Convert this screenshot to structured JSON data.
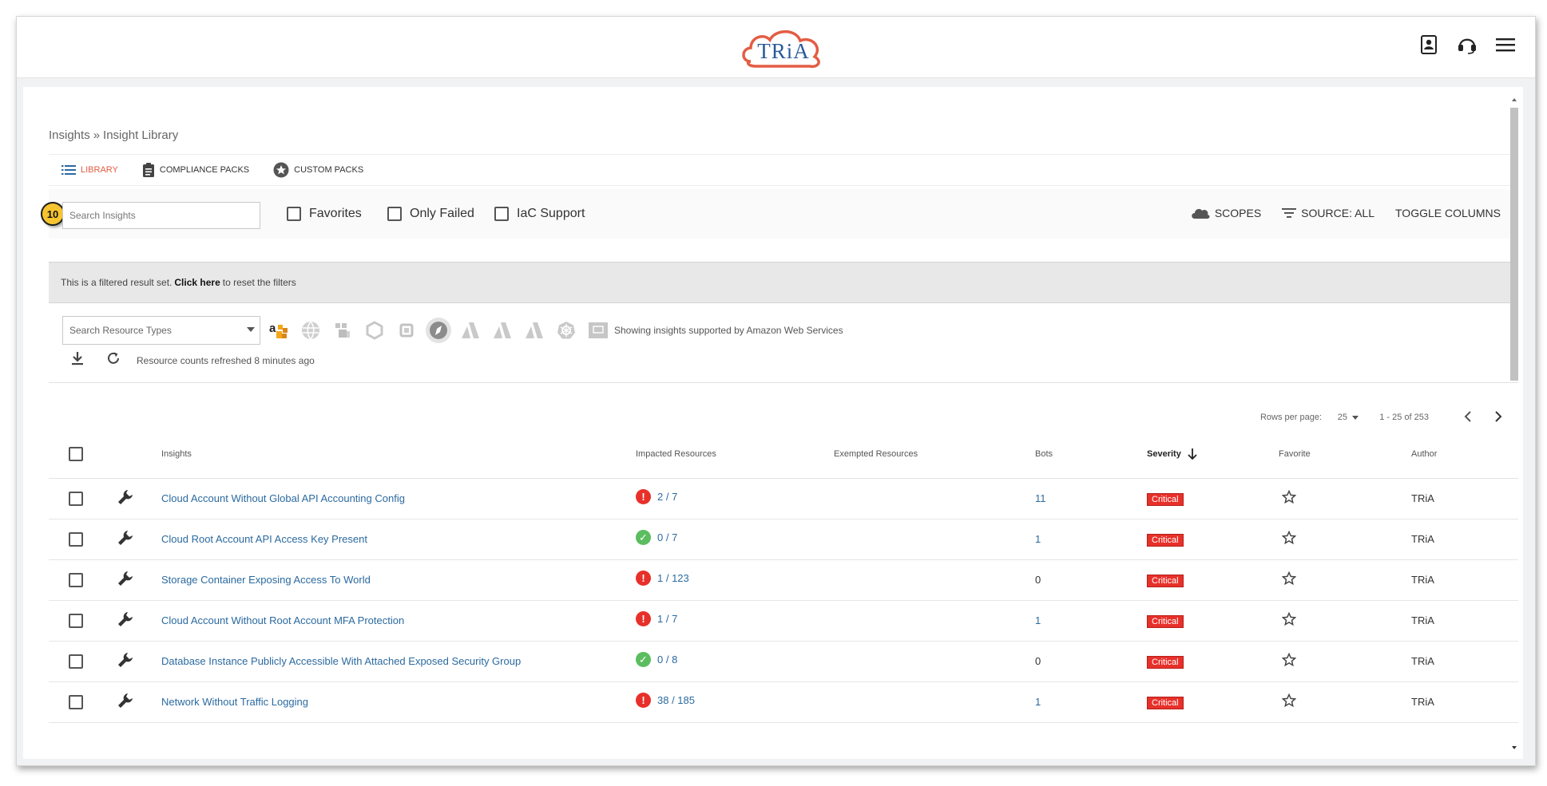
{
  "app": {
    "logo_text": "TRiA",
    "brand_colors": {
      "logo_cloud": "#e35d44",
      "logo_text": "#2a5a9a",
      "accent": "#e35d44",
      "link": "#2b6aa0",
      "critical": "#e8302a",
      "pass": "#5bbd5f",
      "step_badge": "#f6c430"
    }
  },
  "top_icons": [
    "contact-card-icon",
    "headset-icon",
    "hamburger-menu-icon"
  ],
  "breadcrumb": {
    "parent": "Insights",
    "separator": "»",
    "current": "Insight Library"
  },
  "tabs": [
    {
      "label": "LIBRARY",
      "icon": "list-icon",
      "active": true
    },
    {
      "label": "COMPLIANCE PACKS",
      "icon": "clipboard-icon",
      "active": false
    },
    {
      "label": "CUSTOM PACKS",
      "icon": "star-circle-icon",
      "active": false
    }
  ],
  "filters": {
    "step_badge": "10",
    "search_placeholder": "Search Insights",
    "checkboxes": [
      "Favorites",
      "Only Failed",
      "IaC Support"
    ],
    "actions": [
      "SCOPES",
      "SOURCE: ALL",
      "TOGGLE COLUMNS"
    ]
  },
  "notice": {
    "prefix": "This is a filtered result set.",
    "link": "Click here",
    "suffix": "to reset the filters"
  },
  "resource_types": {
    "search_placeholder": "Search Resource Types",
    "providers": [
      "amazon-web-services-icon",
      "aws-globe-icon",
      "aws-dots-icon",
      "hexagon-icon",
      "square-icon",
      "compass-icon",
      "azure-icon",
      "azure-icon-2",
      "azure-icon-3",
      "kubernetes-icon",
      "image-icon"
    ],
    "showing_text": "Showing insights supported by Amazon Web Services",
    "refresh_text": "Resource counts refreshed 8 minutes ago"
  },
  "pagination": {
    "rows_per_page_label": "Rows per page:",
    "rows_per_page": "25",
    "range": "1 - 25 of 253"
  },
  "table": {
    "headers": {
      "insights": "Insights",
      "impacted": "Impacted Resources",
      "exempted": "Exempted Resources",
      "bots": "Bots",
      "severity": "Severity",
      "favorite": "Favorite",
      "author": "Author"
    },
    "rows": [
      {
        "name": "Cloud Account Without Global API Accounting Config",
        "status": "fail",
        "impacted": "2 / 7",
        "bots": "11",
        "bots_link": true,
        "severity": "Critical",
        "author": "TRiA"
      },
      {
        "name": "Cloud Root Account API Access Key Present",
        "status": "pass",
        "impacted": "0 / 7",
        "bots": "1",
        "bots_link": true,
        "severity": "Critical",
        "author": "TRiA"
      },
      {
        "name": "Storage Container Exposing Access To World",
        "status": "fail",
        "impacted": "1 / 123",
        "bots": "0",
        "bots_link": false,
        "severity": "Critical",
        "author": "TRiA"
      },
      {
        "name": "Cloud Account Without Root Account MFA Protection",
        "status": "fail",
        "impacted": "1 / 7",
        "bots": "1",
        "bots_link": true,
        "severity": "Critical",
        "author": "TRiA"
      },
      {
        "name": "Database Instance Publicly Accessible With Attached Exposed Security Group",
        "status": "pass",
        "impacted": "0 / 8",
        "bots": "0",
        "bots_link": false,
        "severity": "Critical",
        "author": "TRiA"
      },
      {
        "name": "Network Without Traffic Logging",
        "status": "fail",
        "impacted": "38 / 185",
        "bots": "1",
        "bots_link": true,
        "severity": "Critical",
        "author": "TRiA"
      }
    ]
  }
}
